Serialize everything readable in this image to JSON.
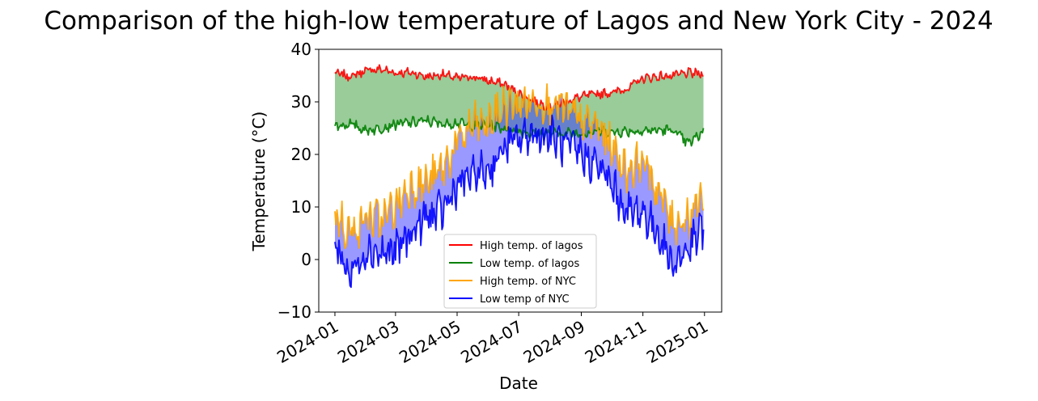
{
  "chart_data": {
    "type": "line",
    "title": "Comparison of the high-low temperature of Lagos and New York City - 2024",
    "xlabel": "Date",
    "ylabel": "Temperature (°C)",
    "xlim": [
      "2023-12-16",
      "2025-01-18"
    ],
    "ylim": [
      -10,
      40
    ],
    "yticks": [
      -10,
      0,
      10,
      20,
      30,
      40
    ],
    "xticks": [
      "2024-01",
      "2024-03",
      "2024-05",
      "2024-07",
      "2024-09",
      "2024-11",
      "2025-01"
    ],
    "legend_position": "lower-center",
    "grid": false,
    "x_sample_dates": [
      "2024-01-01",
      "2024-01-16",
      "2024-02-01",
      "2024-02-16",
      "2024-03-01",
      "2024-03-16",
      "2024-04-01",
      "2024-04-16",
      "2024-05-01",
      "2024-05-16",
      "2024-06-01",
      "2024-06-16",
      "2024-07-01",
      "2024-07-16",
      "2024-08-01",
      "2024-08-16",
      "2024-09-01",
      "2024-09-16",
      "2024-10-01",
      "2024-10-16",
      "2024-11-01",
      "2024-11-16",
      "2024-12-01",
      "2024-12-16",
      "2024-12-31"
    ],
    "series": [
      {
        "name": "High temp. of lagos",
        "color": "#ff0000",
        "values": [
          35.5,
          34.8,
          36.0,
          36.2,
          35.5,
          35.6,
          34.8,
          35.2,
          34.5,
          34.8,
          34.0,
          33.4,
          31.6,
          30.2,
          29.0,
          30.0,
          31.0,
          31.5,
          31.8,
          32.5,
          34.5,
          34.8,
          35.0,
          35.5,
          35.3
        ]
      },
      {
        "name": "Low temp. of lagos",
        "color": "#008000",
        "values": [
          25.3,
          25.8,
          24.6,
          25.0,
          25.8,
          26.0,
          26.4,
          25.8,
          26.0,
          25.4,
          25.5,
          25.0,
          24.5,
          23.8,
          24.0,
          24.0,
          24.0,
          24.5,
          24.2,
          24.4,
          24.5,
          24.6,
          24.6,
          22.0,
          24.4
        ]
      },
      {
        "name": "High temp. of NYC",
        "color": "#ffa500",
        "values": [
          9.0,
          5.0,
          8.0,
          7.5,
          10.0,
          14.0,
          14.5,
          17.0,
          22.0,
          25.5,
          25.8,
          29.0,
          29.5,
          30.0,
          30.0,
          28.5,
          26.0,
          25.5,
          21.5,
          17.0,
          19.0,
          13.0,
          7.0,
          8.0,
          12.0
        ]
      },
      {
        "name": "Low temp of NYC",
        "color": "#0000ff",
        "values": [
          3.0,
          -3.0,
          2.0,
          1.0,
          1.5,
          5.0,
          8.0,
          9.0,
          14.0,
          16.0,
          17.0,
          21.0,
          23.0,
          24.0,
          23.5,
          21.5,
          20.0,
          18.0,
          14.0,
          9.0,
          9.0,
          5.0,
          -1.0,
          2.0,
          6.0
        ]
      }
    ],
    "fills": [
      {
        "between": [
          "High temp. of lagos",
          "Low temp. of lagos"
        ],
        "color": "#339933"
      },
      {
        "between": [
          "High temp. of NYC",
          "Low temp of NYC"
        ],
        "color": "#3333ff"
      }
    ]
  }
}
